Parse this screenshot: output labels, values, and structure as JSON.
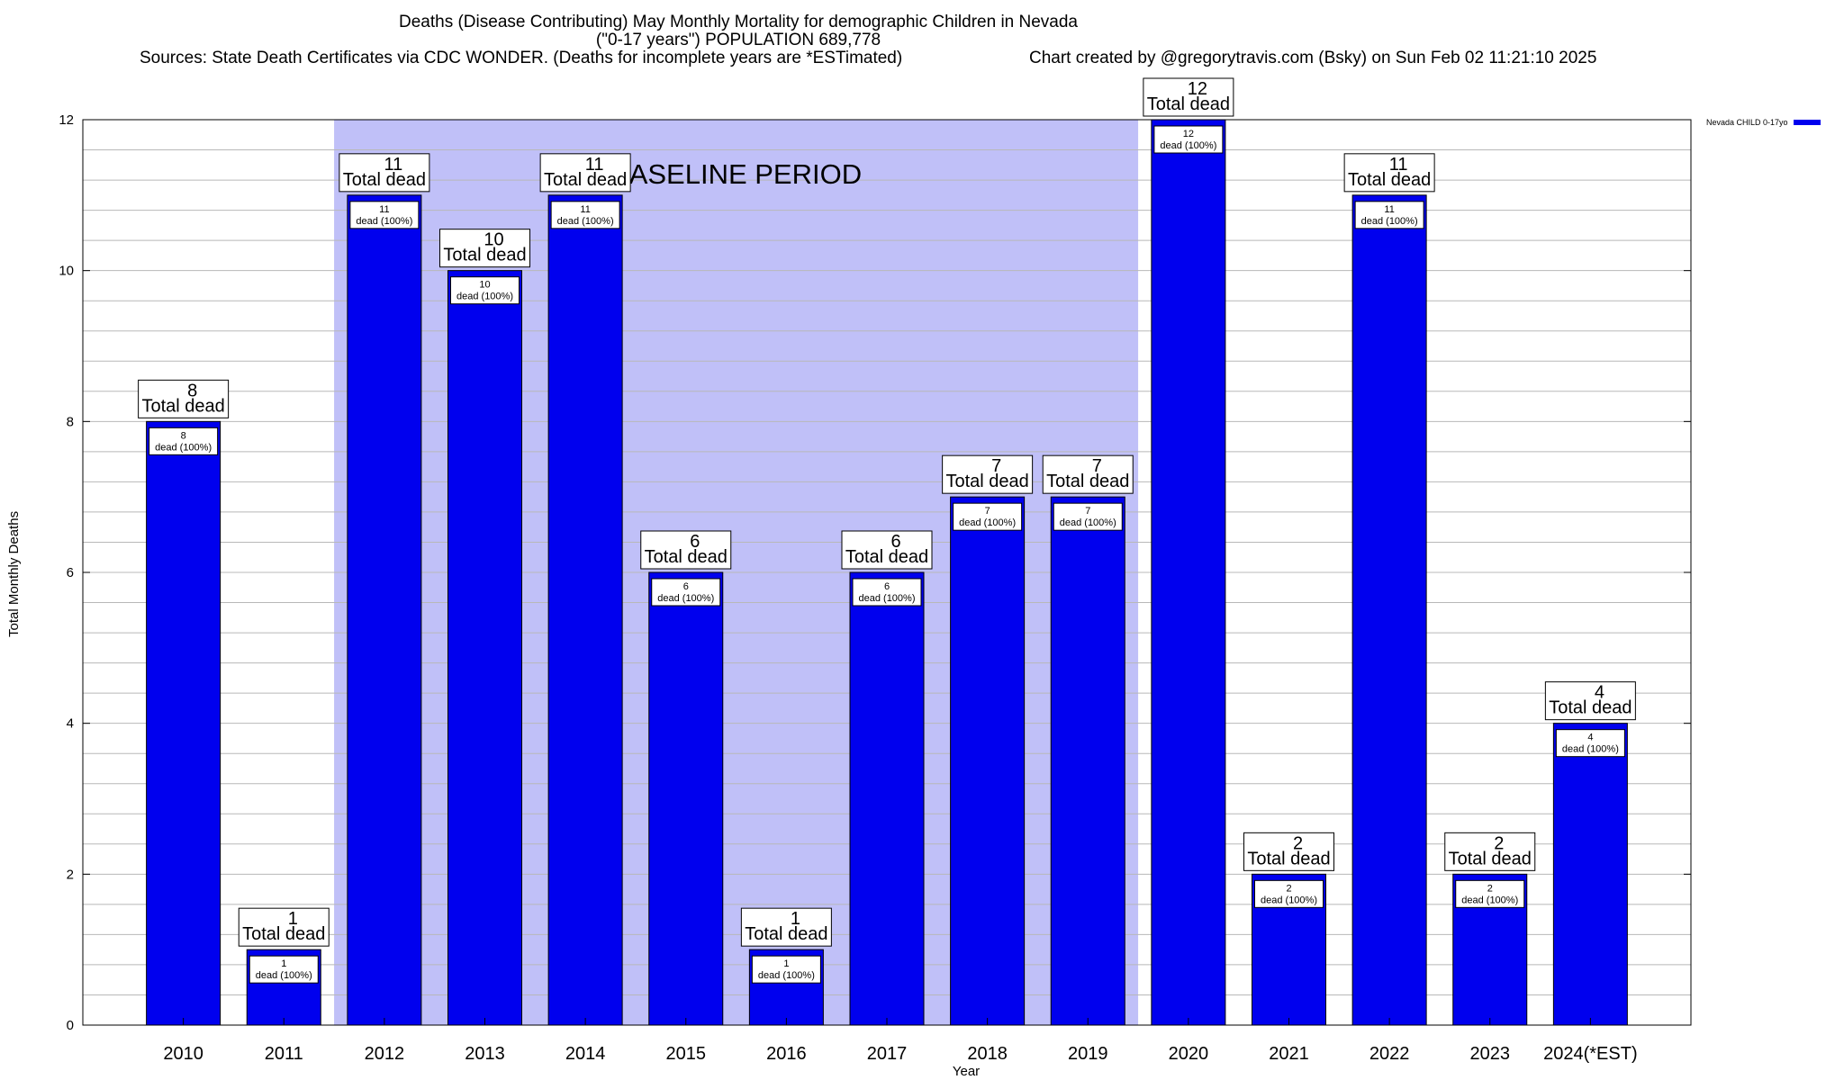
{
  "title": {
    "line1": "Deaths (Disease Contributing) May Monthly Mortality for demographic Children in Nevada",
    "line2": "(\"0-17 years\") POPULATION 689,778",
    "sources": "Sources: State Death Certificates via CDC WONDER. (Deaths for incomplete years are *ESTimated)",
    "credit": "Chart created by @gregorytravis.com (Bsky) on Sun Feb 02 11:21:10 2025"
  },
  "chart_data": {
    "type": "bar",
    "xlabel": "Year",
    "ylabel": "Total Monthly Deaths",
    "ylim": [
      0,
      12
    ],
    "yticks": [
      "0",
      "2",
      "4",
      "6",
      "8",
      "10",
      "12"
    ],
    "categories": [
      "2010",
      "2011",
      "2012",
      "2013",
      "2014",
      "2015",
      "2016",
      "2017",
      "2018",
      "2019",
      "2020",
      "2021",
      "2022",
      "2023",
      "2024(*EST)"
    ],
    "series": [
      {
        "name": "Nevada CHILD 0-17yo",
        "values": [
          8,
          1,
          11,
          10,
          11,
          6,
          1,
          6,
          7,
          7,
          12,
          2,
          11,
          2,
          4
        ]
      }
    ],
    "total_label_suffix": "Total dead",
    "inner_label_suffix": "dead (100%)",
    "baseline": {
      "label": "BASELINE PERIOD",
      "from": "2012",
      "to": "2019",
      "color": "#c0c0f8"
    },
    "bar_color": "#0000ee",
    "grid": true,
    "legend_position": "top-right"
  }
}
